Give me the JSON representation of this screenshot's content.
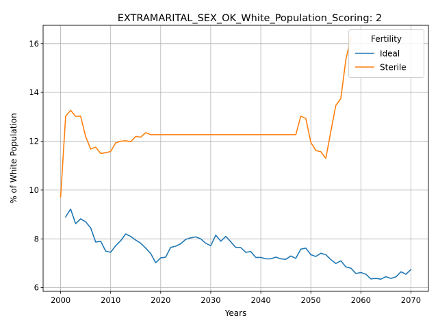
{
  "chart_data": {
    "type": "line",
    "title": "EXTRAMARITAL_SEX_OK_White_Population_Scoring: 2",
    "xlabel": "Years",
    "ylabel": "% of White Population",
    "xlim": [
      1996.5,
      2073.5
    ],
    "ylim": [
      5.85,
      16.75
    ],
    "xticks": [
      2000,
      2010,
      2020,
      2030,
      2040,
      2050,
      2060,
      2070
    ],
    "yticks": [
      6,
      8,
      10,
      12,
      14,
      16
    ],
    "grid": true,
    "legend": {
      "title": "Fertility",
      "placement": "top-right"
    },
    "series": [
      {
        "name": "Ideal",
        "color": "#1f77b4",
        "x": [
          2001,
          2002,
          2003,
          2004,
          2005,
          2006,
          2007,
          2008,
          2009,
          2010,
          2011,
          2012,
          2013,
          2014,
          2015,
          2016,
          2017,
          2018,
          2019,
          2020,
          2021,
          2022,
          2023,
          2024,
          2025,
          2026,
          2027,
          2028,
          2029,
          2030,
          2031,
          2032,
          2033,
          2034,
          2035,
          2036,
          2037,
          2038,
          2039,
          2040,
          2041,
          2042,
          2043,
          2044,
          2045,
          2046,
          2047,
          2048,
          2049,
          2050,
          2051,
          2052,
          2053,
          2054,
          2055,
          2056,
          2057,
          2058,
          2059,
          2060,
          2061,
          2062,
          2063,
          2064,
          2065,
          2066,
          2067,
          2068,
          2069,
          2070
        ],
        "y": [
          8.9,
          9.22,
          8.62,
          8.82,
          8.7,
          8.45,
          7.87,
          7.9,
          7.5,
          7.45,
          7.72,
          7.92,
          8.2,
          8.1,
          7.95,
          7.82,
          7.62,
          7.4,
          7.02,
          7.22,
          7.25,
          7.65,
          7.7,
          7.8,
          7.98,
          8.04,
          8.08,
          8.0,
          7.82,
          7.72,
          8.15,
          7.9,
          8.1,
          7.88,
          7.65,
          7.64,
          7.45,
          7.48,
          7.24,
          7.24,
          7.18,
          7.18,
          7.25,
          7.18,
          7.16,
          7.3,
          7.2,
          7.58,
          7.62,
          7.35,
          7.28,
          7.41,
          7.35,
          7.15,
          6.99,
          7.1,
          6.85,
          6.8,
          6.58,
          6.62,
          6.55,
          6.36,
          6.38,
          6.35,
          6.45,
          6.38,
          6.44,
          6.65,
          6.55,
          6.74
        ]
      },
      {
        "name": "Sterile",
        "color": "#ff7f0e",
        "x": [
          2000,
          2001,
          2002,
          2003,
          2004,
          2005,
          2006,
          2007,
          2008,
          2009,
          2010,
          2011,
          2012,
          2013,
          2014,
          2015,
          2016,
          2017,
          2018,
          2019,
          2020,
          2021,
          2022,
          2023,
          2024,
          2025,
          2026,
          2027,
          2028,
          2029,
          2030,
          2031,
          2032,
          2033,
          2034,
          2035,
          2036,
          2037,
          2038,
          2039,
          2040,
          2041,
          2042,
          2043,
          2044,
          2045,
          2046,
          2047,
          2048,
          2049,
          2050,
          2051,
          2052,
          2053,
          2054,
          2055,
          2056,
          2057,
          2058
        ],
        "y": [
          9.72,
          13.02,
          13.27,
          13.02,
          13.03,
          12.2,
          11.68,
          11.76,
          11.5,
          11.53,
          11.58,
          11.93,
          12.0,
          12.02,
          11.98,
          12.2,
          12.17,
          12.35,
          12.27,
          12.27,
          12.27,
          12.27,
          12.27,
          12.27,
          12.27,
          12.27,
          12.27,
          12.27,
          12.27,
          12.27,
          12.27,
          12.27,
          12.27,
          12.27,
          12.27,
          12.27,
          12.27,
          12.27,
          12.27,
          12.27,
          12.27,
          12.27,
          12.27,
          12.27,
          12.27,
          12.27,
          12.27,
          12.27,
          13.03,
          12.93,
          11.95,
          11.62,
          11.57,
          11.3,
          12.4,
          13.47,
          13.75,
          15.35,
          16.25
        ]
      }
    ]
  }
}
